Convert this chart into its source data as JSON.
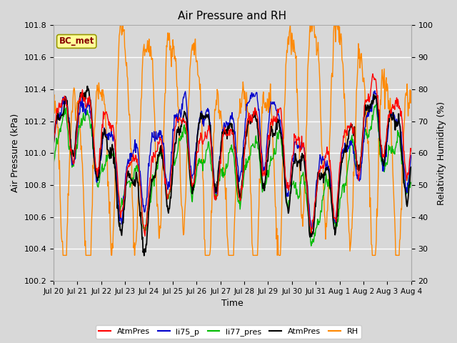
{
  "title": "Air Pressure and RH",
  "xlabel": "Time",
  "ylabel_left": "Air Pressure (kPa)",
  "ylabel_right": "Relativity Humidity (%)",
  "ylim_left": [
    100.2,
    101.8
  ],
  "ylim_right": [
    20,
    100
  ],
  "yticks_left": [
    100.2,
    100.4,
    100.6,
    100.8,
    101.0,
    101.2,
    101.4,
    101.6,
    101.8
  ],
  "yticks_right": [
    20,
    30,
    40,
    50,
    60,
    70,
    80,
    90,
    100
  ],
  "xtick_labels": [
    "Jul 20",
    "Jul 21",
    "Jul 22",
    "Jul 23",
    "Jul 24",
    "Jul 25",
    "Jul 26",
    "Jul 27",
    "Jul 28",
    "Jul 29",
    "Jul 30",
    "Jul 31",
    "Aug 1",
    "Aug 2",
    "Aug 3",
    "Aug 4"
  ],
  "colors": {
    "AtmPres_red": "#ff0000",
    "li75_p": "#0000cc",
    "li77_pres": "#00bb00",
    "AtmPres_black": "#000000",
    "RH": "#ff8800"
  },
  "fig_facecolor": "#d8d8d8",
  "ax_facecolor": "#d8d8d8",
  "grid_color": "#ffffff",
  "legend_label": "BC_met",
  "legend_box_facecolor": "#ffff99",
  "legend_box_edgecolor": "#999900",
  "legend_text_color": "#880000",
  "n_points": 720,
  "seed": 17
}
